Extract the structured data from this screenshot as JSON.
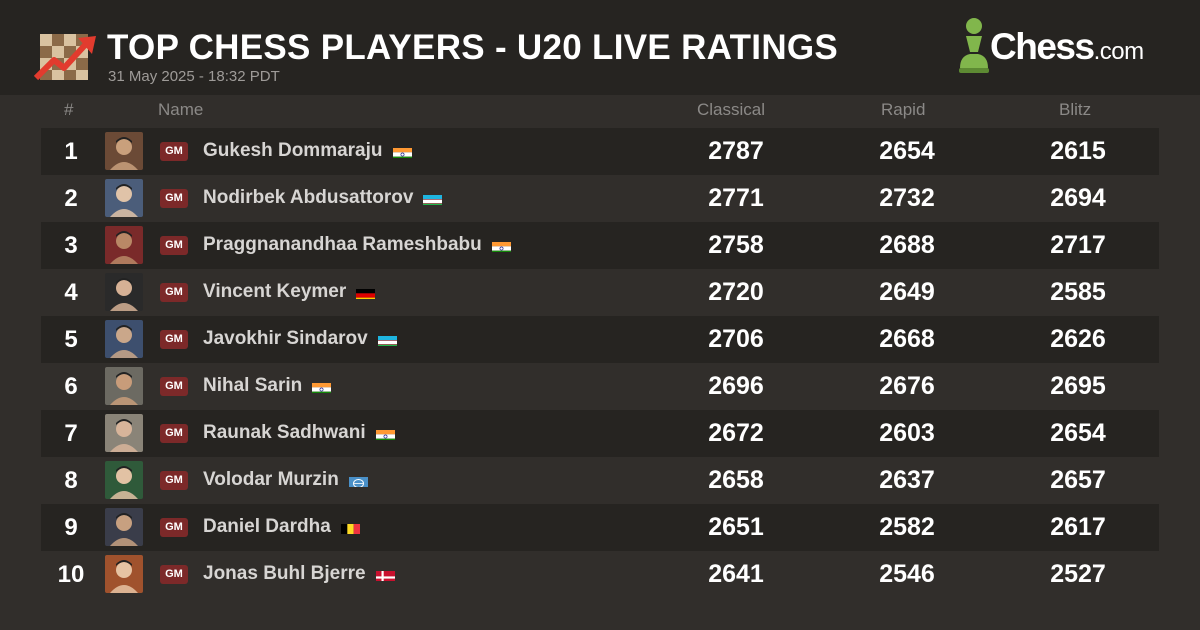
{
  "header": {
    "title": "TOP CHESS PLAYERS - U20 LIVE RATINGS",
    "date": "31 May 2025 - 18:32 PDT",
    "brand": "Chess",
    "brand_suffix": ".com",
    "chart_icon": "trend-chart-icon",
    "brand_icon": "pawn-icon"
  },
  "columns": {
    "rank": "#",
    "name": "Name",
    "classical": "Classical",
    "rapid": "Rapid",
    "blitz": "Blitz"
  },
  "colors": {
    "background": "#312e2b",
    "header": "#262421",
    "stripe": "#262421",
    "title_badge": "#7c2929",
    "brand_green": "#81b64c"
  },
  "players": [
    {
      "rank": "1",
      "title": "GM",
      "name": "Gukesh Dommaraju",
      "flag": "IN",
      "classical": "2787",
      "rapid": "2654",
      "blitz": "2615"
    },
    {
      "rank": "2",
      "title": "GM",
      "name": "Nodirbek Abdusattorov",
      "flag": "UZ",
      "classical": "2771",
      "rapid": "2732",
      "blitz": "2694"
    },
    {
      "rank": "3",
      "title": "GM",
      "name": "Praggnanandhaa Rameshbabu",
      "flag": "IN",
      "classical": "2758",
      "rapid": "2688",
      "blitz": "2717"
    },
    {
      "rank": "4",
      "title": "GM",
      "name": "Vincent Keymer",
      "flag": "DE",
      "classical": "2720",
      "rapid": "2649",
      "blitz": "2585"
    },
    {
      "rank": "5",
      "title": "GM",
      "name": "Javokhir Sindarov",
      "flag": "UZ",
      "classical": "2706",
      "rapid": "2668",
      "blitz": "2626"
    },
    {
      "rank": "6",
      "title": "GM",
      "name": "Nihal Sarin",
      "flag": "IN",
      "classical": "2696",
      "rapid": "2676",
      "blitz": "2695"
    },
    {
      "rank": "7",
      "title": "GM",
      "name": "Raunak Sadhwani",
      "flag": "IN",
      "classical": "2672",
      "rapid": "2603",
      "blitz": "2654"
    },
    {
      "rank": "8",
      "title": "GM",
      "name": "Volodar Murzin",
      "flag": "FIDE",
      "classical": "2658",
      "rapid": "2637",
      "blitz": "2657"
    },
    {
      "rank": "9",
      "title": "GM",
      "name": "Daniel Dardha",
      "flag": "BE",
      "classical": "2651",
      "rapid": "2582",
      "blitz": "2617"
    },
    {
      "rank": "10",
      "title": "GM",
      "name": "Jonas Buhl Bjerre",
      "flag": "DK",
      "classical": "2641",
      "rapid": "2546",
      "blitz": "2527"
    }
  ]
}
